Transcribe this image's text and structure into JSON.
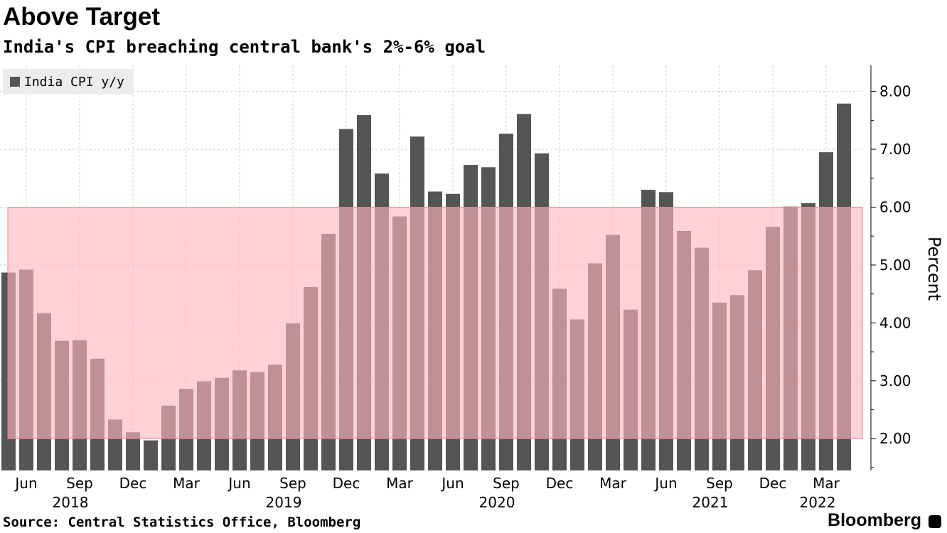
{
  "title": "Above Target",
  "subtitle": "India's CPI breaching central bank's 2%-6% goal",
  "source": "Source: Central Statistics Office, Bloomberg",
  "brand": "Bloomberg",
  "chart_data": {
    "type": "bar",
    "ylabel": "Percent",
    "ylim": [
      1.45,
      8.45
    ],
    "yticks": [
      2,
      3,
      4,
      5,
      6,
      7,
      8
    ],
    "ytick_labels": [
      "2.00",
      "3.00",
      "4.00",
      "5.00",
      "6.00",
      "7.00",
      "8.00"
    ],
    "target_band": [
      2,
      6
    ],
    "colors": {
      "bar": "#555555",
      "band": "#ffb6c1",
      "band_edge": "#f08080",
      "grid": "#cfcfcf"
    },
    "x_tick_labels": [
      {
        "index": 1,
        "label": "Jun",
        "year": "2018"
      },
      {
        "index": 4,
        "label": "Sep"
      },
      {
        "index": 7,
        "label": "Dec"
      },
      {
        "index": 10,
        "label": "Mar"
      },
      {
        "index": 13,
        "label": "Jun",
        "year": "2019"
      },
      {
        "index": 16,
        "label": "Sep"
      },
      {
        "index": 19,
        "label": "Dec"
      },
      {
        "index": 22,
        "label": "Mar"
      },
      {
        "index": 25,
        "label": "Jun",
        "year": "2020"
      },
      {
        "index": 28,
        "label": "Sep"
      },
      {
        "index": 31,
        "label": "Dec"
      },
      {
        "index": 34,
        "label": "Mar"
      },
      {
        "index": 37,
        "label": "Jun",
        "year": "2021"
      },
      {
        "index": 40,
        "label": "Sep"
      },
      {
        "index": 43,
        "label": "Dec"
      },
      {
        "index": 46,
        "label": "Mar",
        "year": "2022"
      }
    ],
    "series": [
      {
        "name": "India CPI y/y",
        "categories": [
          "May 2018",
          "Jun 2018",
          "Jul 2018",
          "Aug 2018",
          "Sep 2018",
          "Oct 2018",
          "Nov 2018",
          "Dec 2018",
          "Jan 2019",
          "Feb 2019",
          "Mar 2019",
          "Apr 2019",
          "May 2019",
          "Jun 2019",
          "Jul 2019",
          "Aug 2019",
          "Sep 2019",
          "Oct 2019",
          "Nov 2019",
          "Dec 2019",
          "Jan 2020",
          "Feb 2020",
          "Mar 2020",
          "Apr 2020",
          "May 2020",
          "Jun 2020",
          "Jul 2020",
          "Aug 2020",
          "Sep 2020",
          "Oct 2020",
          "Nov 2020",
          "Dec 2020",
          "Jan 2021",
          "Feb 2021",
          "Mar 2021",
          "Apr 2021",
          "May 2021",
          "Jun 2021",
          "Jul 2021",
          "Aug 2021",
          "Sep 2021",
          "Oct 2021",
          "Nov 2021",
          "Dec 2021",
          "Jan 2022",
          "Feb 2022",
          "Mar 2022",
          "Apr 2022"
        ],
        "values": [
          4.87,
          4.92,
          4.17,
          3.69,
          3.7,
          3.38,
          2.33,
          2.11,
          1.97,
          2.57,
          2.86,
          2.99,
          3.05,
          3.18,
          3.15,
          3.28,
          3.99,
          4.62,
          5.54,
          7.35,
          7.59,
          6.58,
          5.84,
          7.22,
          6.27,
          6.23,
          6.73,
          6.69,
          7.27,
          7.61,
          6.93,
          4.59,
          4.06,
          5.03,
          5.52,
          4.23,
          6.3,
          6.26,
          5.59,
          5.3,
          4.35,
          4.48,
          4.91,
          5.66,
          6.01,
          6.07,
          6.95,
          7.79
        ]
      }
    ]
  }
}
